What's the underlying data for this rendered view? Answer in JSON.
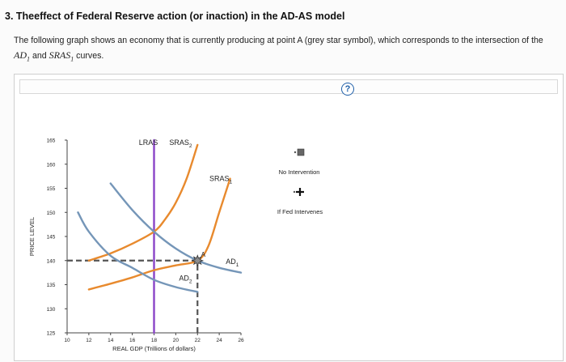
{
  "question": {
    "title": "3. Theeffect of Federal Reserve action (or inaction) in the AD-AS model",
    "text_before": "The following graph shows an economy that is currently producing at point A (grey star symbol), which corresponds to the intersection of the ",
    "ad_symbol": "AD",
    "ad_subscript": "1",
    "text_middle": " and ",
    "sras_symbol": "SRAS",
    "sras_subscript": "1",
    "text_after": " curves."
  },
  "help_label": "?",
  "chart_data": {
    "type": "line",
    "xlabel": "REAL GDP (Trillions of dollars)",
    "ylabel": "PRICE LEVEL",
    "xlim": [
      10,
      26
    ],
    "ylim": [
      125,
      165
    ],
    "x_ticks": [
      10,
      12,
      14,
      16,
      18,
      20,
      22,
      24,
      26
    ],
    "y_ticks": [
      125,
      130,
      135,
      140,
      145,
      150,
      155,
      160,
      165
    ],
    "grid": false,
    "series": [
      {
        "name": "LRAS",
        "color": "#8a44c8",
        "points": [
          [
            18,
            125
          ],
          [
            18,
            165
          ]
        ]
      },
      {
        "name": "SRAS",
        "subscript": "2",
        "color": "#e88a2e",
        "points": [
          [
            12,
            140
          ],
          [
            14,
            141.5
          ],
          [
            16,
            143.5
          ],
          [
            18,
            146
          ],
          [
            19,
            148.5
          ],
          [
            20,
            152
          ],
          [
            21,
            157
          ],
          [
            22,
            164
          ]
        ]
      },
      {
        "name": "SRAS",
        "subscript": "1",
        "color": "#e88a2e",
        "points": [
          [
            12,
            134
          ],
          [
            14,
            135.2
          ],
          [
            16,
            136.5
          ],
          [
            18,
            138
          ],
          [
            20,
            139
          ],
          [
            22,
            140
          ],
          [
            23,
            143
          ],
          [
            24,
            150
          ],
          [
            25,
            157
          ]
        ]
      },
      {
        "name": "AD",
        "subscript": "1",
        "color": "#7596b8",
        "points": [
          [
            14,
            156
          ],
          [
            16,
            150.5
          ],
          [
            18,
            146
          ],
          [
            20,
            142.5
          ],
          [
            22,
            140
          ],
          [
            24,
            138.5
          ],
          [
            26,
            137.5
          ]
        ]
      },
      {
        "name": "AD",
        "subscript": "2",
        "color": "#7596b8",
        "points": [
          [
            11,
            150
          ],
          [
            12,
            146
          ],
          [
            14,
            141
          ],
          [
            16,
            138.5
          ],
          [
            18,
            136
          ],
          [
            20,
            134.5
          ],
          [
            22,
            133.5
          ]
        ]
      }
    ],
    "reference_lines": [
      {
        "type": "horizontal",
        "y": 140,
        "from_x": 10,
        "to_x": 22,
        "style": "dashed",
        "color": "#555555"
      },
      {
        "type": "vertical",
        "x": 22,
        "from_y": 125,
        "to_y": 140,
        "style": "dashed",
        "color": "#555555"
      }
    ],
    "point": {
      "label": "A",
      "x": 22,
      "y": 140,
      "marker": "grey-star"
    }
  },
  "legend": {
    "items": [
      {
        "label": "No Intervention",
        "marker": "grey-square",
        "color": "#666666"
      },
      {
        "label": "If Fed Intervenes",
        "marker": "black-plus",
        "color": "#111111"
      }
    ]
  }
}
